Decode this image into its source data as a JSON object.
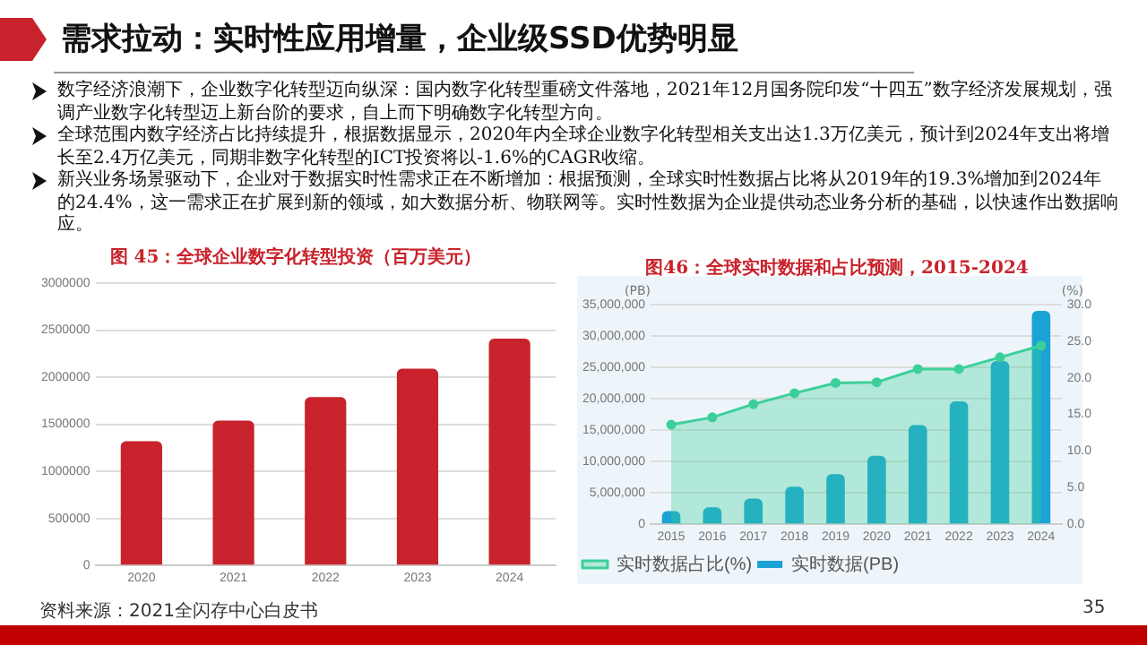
{
  "chart_data": [
    {
      "type": "other",
      "title": "需求拉动：实时性应用增量，企业级SSD优势明显",
      "annotations": [
        "数字经济浪潮下，企业数字化转型迈向纵深：国内数字化转型重磅文件落地，2021年12月国务院印发“十四五”数字经济发展规划，强调产业数字化转型迈上新台阶的要求，自上而下明确数字化转型方向。",
        "全球范围内数字经济占比持续提升，根据数据显示，2020年内全球企业数字化转型相关支出达1.3万亿美元，预计到2024年支出将增长至2.4万亿美元，同期非数字化转型的ICT投资将以-1.6%的CAGR收缩。",
        "新兴业务场景驱动下，企业对于数据实时性需求正在不断增加：根据预测，全球实时性数据占比将从2019年的19.3%增加到2024年的24.4%，这一需求正在扩展到新的领域，如大数据分析、物联网等。实时性数据为企业提供动态业务分析的基础，以快速作出数据响应。",
        "资料来源：2021全闪存中心白皮书",
        "35"
      ]
    },
    {
      "type": "bar",
      "title": "图 45：全球企业数字化转型投资（百万美元）",
      "categories": [
        "2020",
        "2021",
        "2022",
        "2023",
        "2024"
      ],
      "values": [
        1320000,
        1540000,
        1790000,
        2090000,
        2410000
      ],
      "color": "#c8232c",
      "ylim": [
        0,
        3000000
      ],
      "yticks": [
        0,
        500000,
        1000000,
        1500000,
        2000000,
        2500000,
        3000000
      ],
      "grid": "y",
      "legend": false
    },
    {
      "type": "bar",
      "title": "图46：全球实时数据和占比预测，2015-2024",
      "ylabel": "(PB)",
      "y2label": "(%)",
      "categories": [
        "2015",
        "2016",
        "2017",
        "2018",
        "2019",
        "2020",
        "2021",
        "2022",
        "2023",
        "2024"
      ],
      "series": [
        {
          "name": "实时数据(PB)",
          "type": "bar",
          "color": "#1aa3d4",
          "values": [
            2100000,
            2700000,
            4100000,
            6000000,
            8000000,
            10900000,
            15800000,
            19600000,
            26000000,
            34000000
          ]
        },
        {
          "name": "实时数据占比(%)",
          "type": "area",
          "axis": "y2",
          "marker": "circle",
          "color": "#3ccf9a",
          "values": [
            13.6,
            14.6,
            16.4,
            17.9,
            19.3,
            19.4,
            21.2,
            21.2,
            22.8,
            24.4
          ]
        }
      ],
      "ylim": [
        0,
        35000000
      ],
      "yticks": [
        {
          "value": 0,
          "label": "0"
        },
        {
          "value": 5000000,
          "label": "5,000,000"
        },
        {
          "value": 10000000,
          "label": "10,000,000"
        },
        {
          "value": 15000000,
          "label": "15,000,000"
        },
        {
          "value": 20000000,
          "label": "20,000,000"
        },
        {
          "value": 25000000,
          "label": "25,000,000"
        },
        {
          "value": 30000000,
          "label": "30,000,000"
        },
        {
          "value": 35000000,
          "label": "35,000,000"
        }
      ],
      "y2lim": [
        0,
        30
      ],
      "y2ticks": [
        {
          "value": 0,
          "label": "0.0"
        },
        {
          "value": 5,
          "label": "5.0"
        },
        {
          "value": 10,
          "label": "10.0"
        },
        {
          "value": 15,
          "label": "15.0"
        },
        {
          "value": 20,
          "label": "20.0"
        },
        {
          "value": 25,
          "label": "25.0"
        },
        {
          "value": 30,
          "label": "30.0"
        }
      ],
      "grid": "y",
      "legend": "bottom left"
    }
  ]
}
